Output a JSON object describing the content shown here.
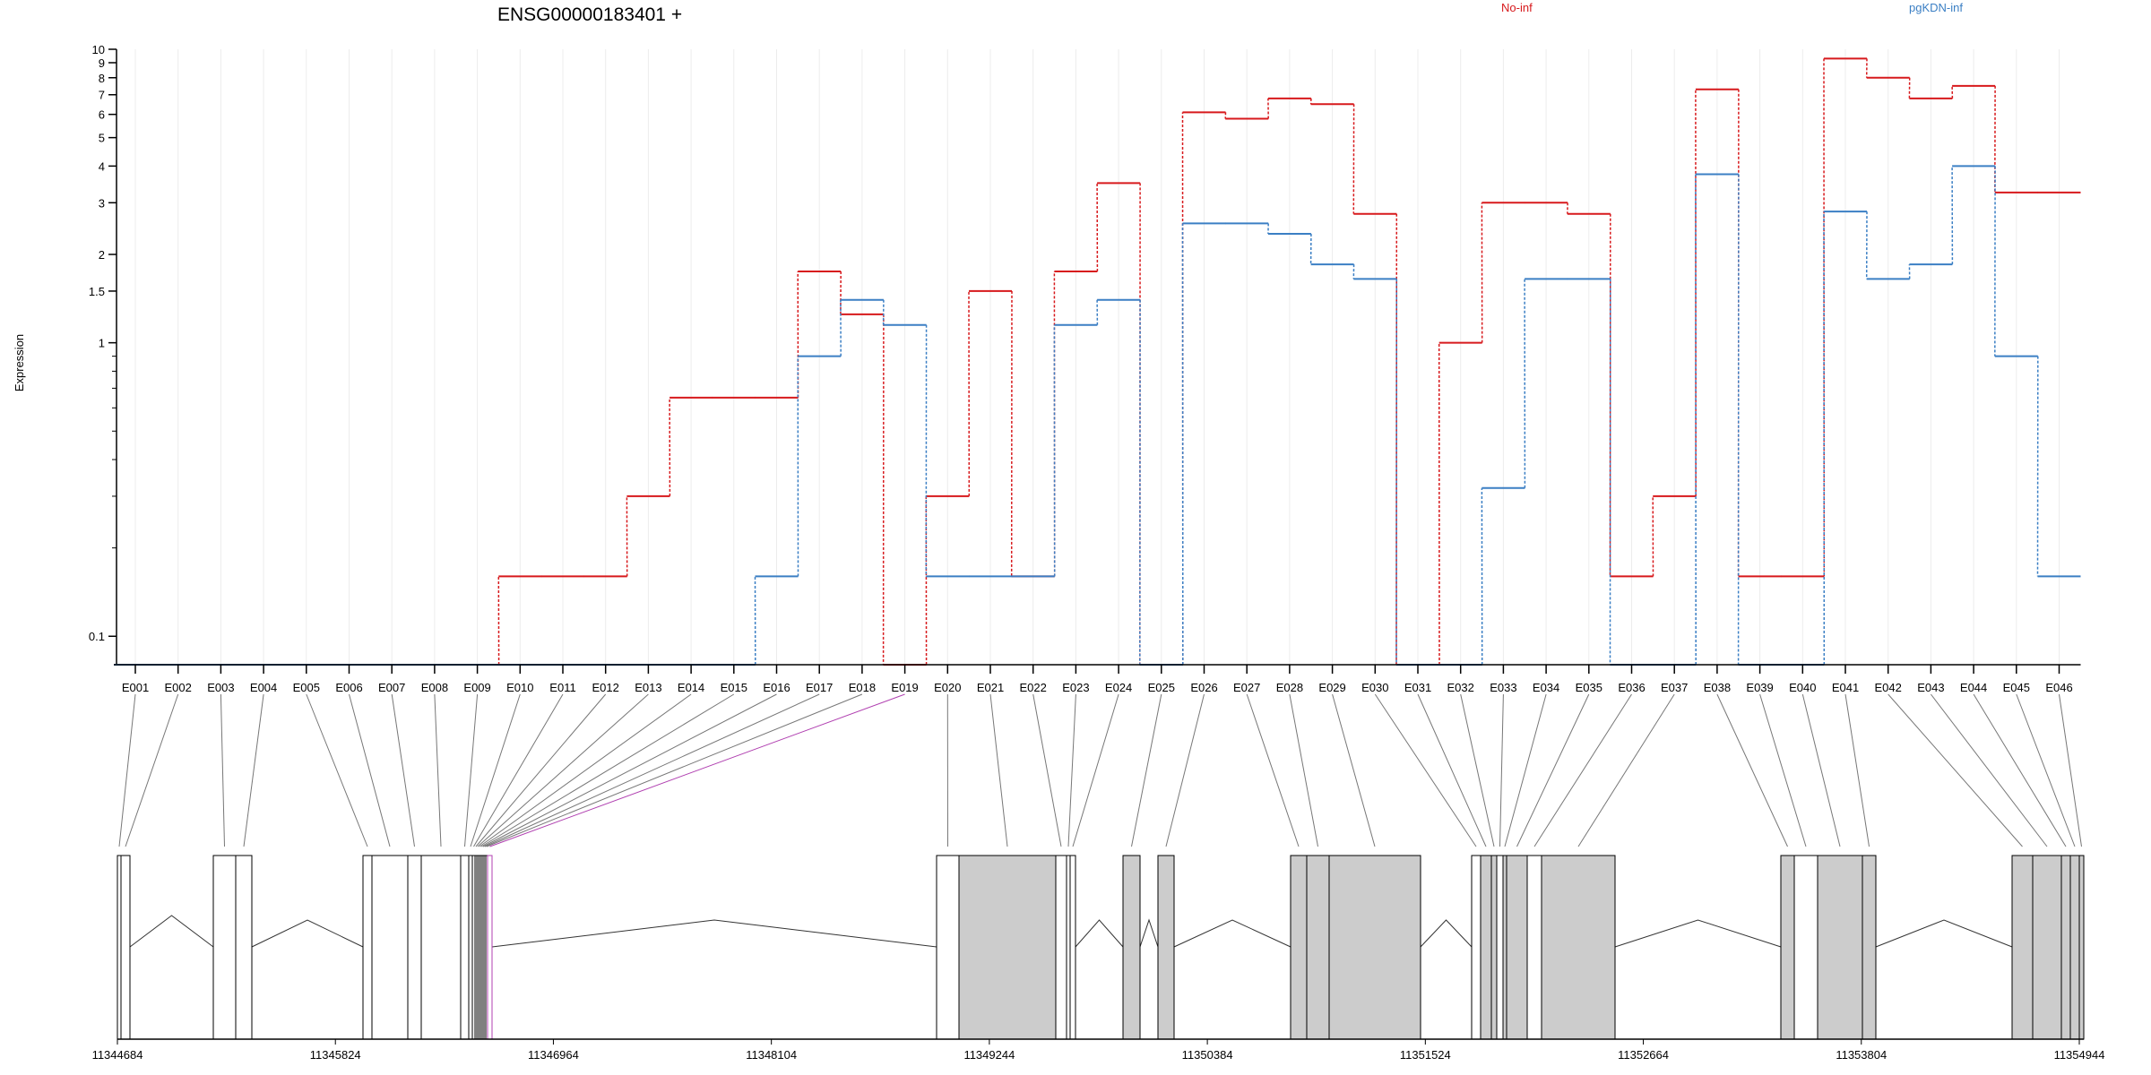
{
  "chart_data": {
    "type": "line",
    "title": "ENSG00000183401 +",
    "ylabel": "Expression",
    "yscale": "log",
    "ylim": [
      0.08,
      10
    ],
    "y_tick_labels": [
      "0.1",
      "1",
      "1.5",
      "2",
      "3",
      "4",
      "5",
      "6",
      "7",
      "8",
      "9",
      "10"
    ],
    "y_tick_values": [
      0.1,
      1,
      1.5,
      2,
      3,
      4,
      5,
      6,
      7,
      8,
      9,
      10
    ],
    "y_minor_ticks": [
      0.2,
      0.3,
      0.4,
      0.5,
      0.6,
      0.7,
      0.8,
      0.9
    ],
    "grid": true,
    "legend_placement": "top",
    "categories": [
      "E001",
      "E002",
      "E003",
      "E004",
      "E005",
      "E006",
      "E007",
      "E008",
      "E009",
      "E010",
      "E011",
      "E012",
      "E013",
      "E014",
      "E015",
      "E016",
      "E017",
      "E018",
      "E019",
      "E020",
      "E021",
      "E022",
      "E023",
      "E024",
      "E025",
      "E026",
      "E027",
      "E028",
      "E029",
      "E030",
      "E031",
      "E032",
      "E033",
      "E034",
      "E035",
      "E036",
      "E037",
      "E038",
      "E039",
      "E040",
      "E041",
      "E042",
      "E043",
      "E044",
      "E045",
      "E046"
    ],
    "series": [
      {
        "name": "No-inf",
        "color": "#d7191c",
        "values": [
          0.08,
          0.08,
          0.08,
          0.08,
          0.08,
          0.08,
          0.08,
          0.08,
          0.08,
          0.16,
          0.16,
          0.16,
          0.3,
          0.65,
          0.65,
          0.65,
          1.75,
          1.25,
          0.08,
          0.3,
          1.5,
          0.16,
          1.75,
          3.5,
          0.08,
          6.1,
          5.8,
          6.8,
          6.5,
          2.75,
          0.08,
          1.0,
          3.0,
          3.0,
          2.75,
          0.16,
          0.3,
          7.3,
          0.16,
          0.16,
          9.3,
          8.0,
          6.8,
          7.5,
          3.25,
          3.25
        ]
      },
      {
        "name": "pgKDN-inf",
        "color": "#3b7fc4",
        "values": [
          0.08,
          0.08,
          0.08,
          0.08,
          0.08,
          0.08,
          0.08,
          0.08,
          0.08,
          0.08,
          0.08,
          0.08,
          0.08,
          0.08,
          0.08,
          0.16,
          0.9,
          1.4,
          1.15,
          0.16,
          0.16,
          0.16,
          1.15,
          1.4,
          0.08,
          2.55,
          2.55,
          2.35,
          1.85,
          1.65,
          0.08,
          0.08,
          0.32,
          1.65,
          1.65,
          0.08,
          0.08,
          3.75,
          0.08,
          0.08,
          2.8,
          1.65,
          1.85,
          4.0,
          0.9,
          0.16
        ]
      }
    ],
    "gene_model": {
      "genomic_axis_labels": [
        "11344684",
        "11345824",
        "11346964",
        "11348104",
        "11349244",
        "11350384",
        "11351524",
        "11352664",
        "11353804",
        "11354944"
      ],
      "genomic_axis_values": [
        11344684,
        11345824,
        11346964,
        11348104,
        11349244,
        11350384,
        11351524,
        11352664,
        11353804,
        11354944
      ],
      "highlighted_exon": "E019",
      "highlight_color": "#b03fb0",
      "shaded_exon_color": "#cccccc"
    }
  }
}
